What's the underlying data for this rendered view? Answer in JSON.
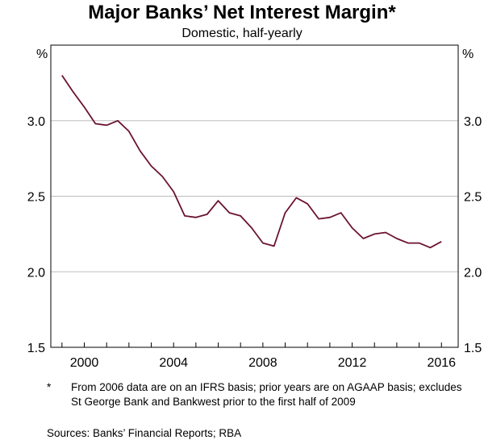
{
  "chart_data": {
    "type": "line",
    "title": "Major Banks’ Net Interest Margin*",
    "subtitle": "Domestic, half-yearly",
    "unit_label_left": "%",
    "unit_label_right": "%",
    "xlim": [
      1998.5,
      2016.75
    ],
    "ylim": [
      1.5,
      3.5
    ],
    "x_ticks": [
      2000,
      2004,
      2008,
      2012,
      2016
    ],
    "y_ticks": [
      1.5,
      2.0,
      2.5,
      3.0
    ],
    "y_tick_labels": [
      "1.5",
      "2.0",
      "2.5",
      "3.0"
    ],
    "grid": true,
    "line_color": "#6b1233",
    "series": [
      {
        "x": [
          1999.0,
          1999.5,
          2000.0,
          2000.5,
          2001.0,
          2001.5,
          2002.0,
          2002.5,
          2003.0,
          2003.5,
          2004.0,
          2004.5,
          2005.0,
          2005.5,
          2006.0,
          2006.5,
          2007.0,
          2007.5,
          2008.0,
          2008.5,
          2009.0,
          2009.5,
          2010.0,
          2010.5,
          2011.0,
          2011.5,
          2012.0,
          2012.5,
          2013.0,
          2013.5,
          2014.0,
          2014.5,
          2015.0,
          2015.5,
          2016.0
        ],
        "values": [
          3.3,
          3.19,
          3.09,
          2.98,
          2.97,
          3.0,
          2.93,
          2.8,
          2.7,
          2.63,
          2.53,
          2.37,
          2.36,
          2.38,
          2.47,
          2.39,
          2.37,
          2.29,
          2.19,
          2.17,
          2.39,
          2.49,
          2.45,
          2.35,
          2.36,
          2.39,
          2.29,
          2.22,
          2.25,
          2.26,
          2.22,
          2.19,
          2.19,
          2.16,
          2.2
        ]
      }
    ]
  },
  "footnote": {
    "mark": "*",
    "text": "From 2006 data are on an IFRS basis; prior years are on AGAAP basis; excludes St George Bank and Bankwest prior to the first half of 2009"
  },
  "sources": "Sources:  Banks’ Financial Reports; RBA"
}
